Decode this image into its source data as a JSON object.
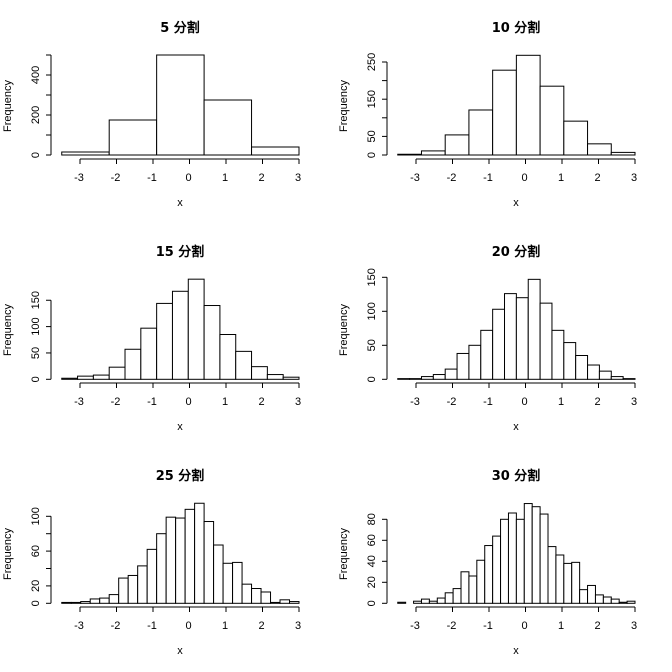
{
  "figure": {
    "layout": "3x2 grid of histograms"
  },
  "chart_data": [
    {
      "type": "bar",
      "title": "5 分割",
      "xlabel": "x",
      "ylabel": "Frequency",
      "breaks": [
        -3.5,
        -2.2,
        -0.9,
        0.4,
        1.7,
        3.0
      ],
      "values": [
        15,
        175,
        500,
        275,
        40
      ],
      "xticks": [
        -3,
        -2,
        -1,
        0,
        1,
        2,
        3
      ],
      "yticks": [
        0,
        100,
        200,
        300,
        400,
        500
      ],
      "ytick_labels": [
        "0",
        "",
        "200",
        "",
        "400",
        ""
      ],
      "ylim": [
        0,
        500
      ],
      "xlim": [
        -3.5,
        3.0
      ],
      "grid": false
    },
    {
      "type": "bar",
      "title": "10 分割",
      "xlabel": "x",
      "ylabel": "Frequency",
      "breaks": [
        -3.5,
        -2.85,
        -2.2,
        -1.55,
        -0.9,
        -0.25,
        0.4,
        1.05,
        1.7,
        2.35,
        3.0
      ],
      "values": [
        2,
        11,
        54,
        121,
        228,
        268,
        185,
        91,
        30,
        7
      ],
      "xticks": [
        -3,
        -2,
        -1,
        0,
        1,
        2,
        3
      ],
      "yticks": [
        0,
        50,
        100,
        150,
        200,
        250
      ],
      "ytick_labels": [
        "0",
        "50",
        "",
        "150",
        "",
        "250"
      ],
      "ylim": [
        0,
        268
      ],
      "xlim": [
        -3.5,
        3.0
      ],
      "grid": false
    },
    {
      "type": "bar",
      "title": "15 分割",
      "xlabel": "x",
      "ylabel": "Frequency",
      "bins": 15,
      "xrange": [
        -3.5,
        3.0
      ],
      "values": [
        2,
        6,
        8,
        23,
        57,
        97,
        144,
        167,
        190,
        140,
        85,
        53,
        24,
        9,
        4
      ],
      "xticks": [
        -3,
        -2,
        -1,
        0,
        1,
        2,
        3
      ],
      "yticks": [
        0,
        50,
        100,
        150
      ],
      "ytick_labels": [
        "0",
        "50",
        "100",
        "150"
      ],
      "ylim": [
        0,
        190
      ],
      "xlim": [
        -3.5,
        3.0
      ],
      "grid": false
    },
    {
      "type": "bar",
      "title": "20 分割",
      "xlabel": "x",
      "ylabel": "Frequency",
      "bins": 20,
      "xrange": [
        -3.5,
        3.0
      ],
      "values": [
        1,
        1,
        4,
        7,
        15,
        38,
        50,
        72,
        103,
        126,
        120,
        147,
        112,
        72,
        54,
        35,
        21,
        12,
        4,
        1
      ],
      "xticks": [
        -3,
        -2,
        -1,
        0,
        1,
        2,
        3
      ],
      "yticks": [
        0,
        50,
        100,
        150
      ],
      "ytick_labels": [
        "0",
        "50",
        "100",
        "150"
      ],
      "ylim": [
        0,
        150
      ],
      "xlim": [
        -3.5,
        3.0
      ],
      "grid": false
    },
    {
      "type": "bar",
      "title": "25 分割",
      "xlabel": "x",
      "ylabel": "Frequency",
      "bins": 25,
      "xrange": [
        -3.5,
        3.0
      ],
      "values": [
        1,
        1,
        2,
        5,
        6,
        10,
        29,
        32,
        43,
        62,
        80,
        99,
        98,
        108,
        115,
        94,
        67,
        46,
        47,
        22,
        17,
        13,
        1,
        4,
        2
      ],
      "xticks": [
        -3,
        -2,
        -1,
        0,
        1,
        2,
        3
      ],
      "yticks": [
        0,
        20,
        40,
        60,
        80,
        100
      ],
      "ytick_labels": [
        "0",
        "20",
        "",
        "60",
        "",
        "100"
      ],
      "ylim": [
        0,
        115
      ],
      "xlim": [
        -3.5,
        3.0
      ],
      "grid": false
    },
    {
      "type": "bar",
      "title": "30 分割",
      "xlabel": "x",
      "ylabel": "Frequency",
      "bins": 30,
      "xrange": [
        -3.5,
        3.0
      ],
      "values": [
        1,
        0,
        2,
        4,
        2,
        5,
        10,
        14,
        30,
        26,
        41,
        55,
        64,
        80,
        86,
        80,
        95,
        92,
        85,
        54,
        46,
        38,
        39,
        13,
        17,
        8,
        6,
        4,
        1,
        2
      ],
      "xticks": [
        -3,
        -2,
        -1,
        0,
        1,
        2,
        3
      ],
      "yticks": [
        0,
        20,
        40,
        60,
        80
      ],
      "ytick_labels": [
        "0",
        "20",
        "40",
        "60",
        "80"
      ],
      "ylim": [
        0,
        95
      ],
      "xlim": [
        -3.5,
        3.0
      ],
      "grid": false
    }
  ],
  "panels": [
    {
      "title": "5 分割",
      "xlabel": "x",
      "ylabel": "Frequency"
    },
    {
      "title": "10 分割",
      "xlabel": "x",
      "ylabel": "Frequency"
    },
    {
      "title": "15 分割",
      "xlabel": "x",
      "ylabel": "Frequency"
    },
    {
      "title": "20 分割",
      "xlabel": "x",
      "ylabel": "Frequency"
    },
    {
      "title": "25 分割",
      "xlabel": "x",
      "ylabel": "Frequency"
    },
    {
      "title": "30 分割",
      "xlabel": "x",
      "ylabel": "Frequency"
    }
  ]
}
